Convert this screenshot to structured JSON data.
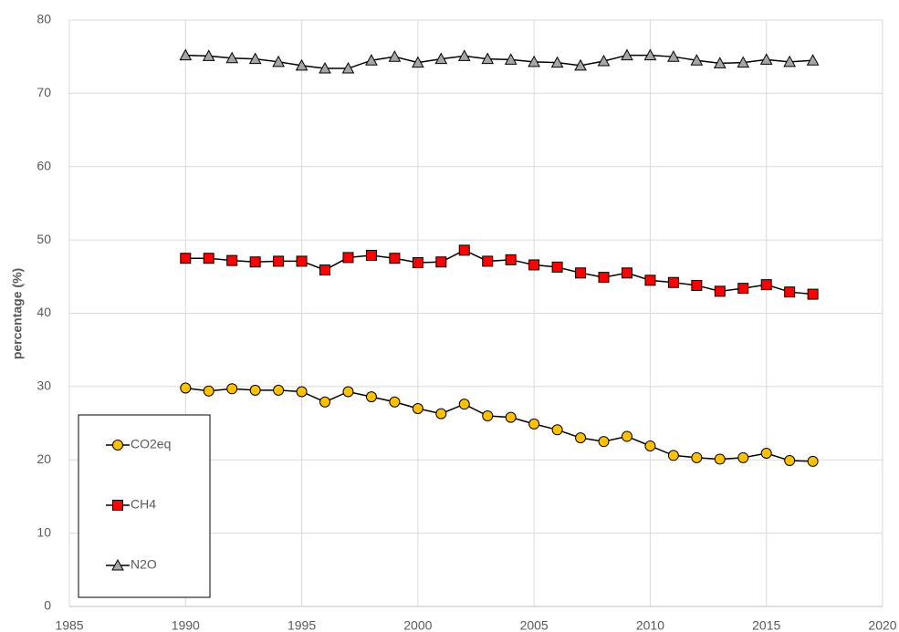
{
  "chart_data": {
    "type": "line",
    "y_label": "percentage (%)",
    "x": [
      1990,
      1991,
      1992,
      1993,
      1994,
      1995,
      1996,
      1997,
      1998,
      1999,
      2000,
      2001,
      2002,
      2003,
      2004,
      2005,
      2006,
      2007,
      2008,
      2009,
      2010,
      2011,
      2012,
      2013,
      2014,
      2015,
      2016,
      2017
    ],
    "series": [
      {
        "name": "CO2eq",
        "color": "#ffc000",
        "marker": "circle",
        "values": [
          29.8,
          29.4,
          29.7,
          29.5,
          29.5,
          29.3,
          27.9,
          29.3,
          28.6,
          27.9,
          27.0,
          26.3,
          27.6,
          26.0,
          25.8,
          24.9,
          24.1,
          23.0,
          22.5,
          23.2,
          21.9,
          20.6,
          20.3,
          20.1,
          20.3,
          20.9,
          19.9,
          19.8
        ]
      },
      {
        "name": "CH4",
        "color": "#ff0000",
        "marker": "square",
        "values": [
          47.5,
          47.5,
          47.2,
          47.0,
          47.1,
          47.1,
          45.9,
          47.6,
          47.9,
          47.5,
          46.9,
          47.0,
          48.6,
          47.1,
          47.3,
          46.6,
          46.3,
          45.5,
          44.9,
          45.5,
          44.5,
          44.2,
          43.8,
          43.0,
          43.4,
          43.9,
          42.9,
          42.6
        ]
      },
      {
        "name": "N2O",
        "color": "#a6a6a6",
        "marker": "triangle",
        "values": [
          75.2,
          75.1,
          74.8,
          74.7,
          74.3,
          73.8,
          73.4,
          73.4,
          74.5,
          75.0,
          74.2,
          74.7,
          75.1,
          74.7,
          74.6,
          74.3,
          74.2,
          73.8,
          74.4,
          75.2,
          75.2,
          75.0,
          74.5,
          74.1,
          74.2,
          74.6,
          74.3,
          74.5
        ]
      }
    ],
    "xlim": [
      1985,
      2020
    ],
    "xticks": [
      1985,
      1990,
      1995,
      2000,
      2005,
      2010,
      2015,
      2020
    ],
    "ylim": [
      0,
      80
    ],
    "yticks": [
      0,
      10,
      20,
      30,
      40,
      50,
      60,
      70,
      80
    ],
    "grid": true,
    "line_color": "#000000",
    "legend_position": "lower left"
  }
}
